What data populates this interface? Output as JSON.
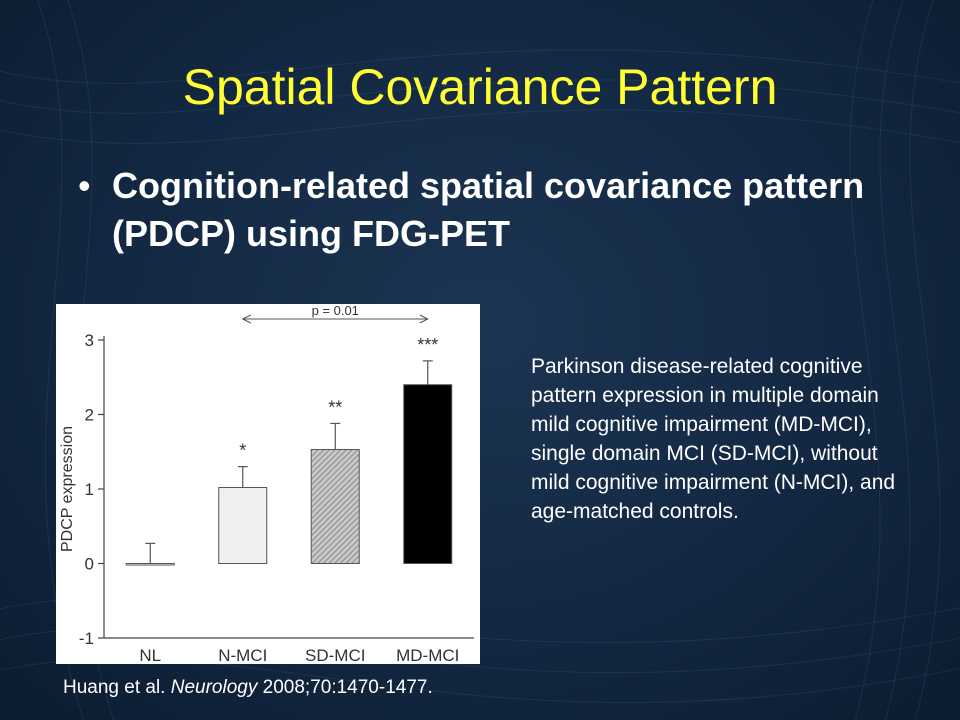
{
  "slide": {
    "title": "Spatial Covariance Pattern",
    "bullet": "Cognition-related spatial covariance pattern (PDCP) using FDG-PET",
    "caption": "Parkinson disease-related cognitive pattern expression in multiple domain mild cognitive impairment (MD-MCI), single domain MCI (SD-MCI), without mild cognitive impairment (N-MCI), and age-matched controls.",
    "citation": {
      "authors": "Huang et al. ",
      "journal": "Neurology",
      "details": " 2008;70:1470-1477."
    }
  },
  "chart_data": {
    "type": "bar",
    "title": "",
    "xlabel": "",
    "ylabel": "PDCP expression",
    "ylim": [
      -1,
      3
    ],
    "yticks": [
      "-1",
      "0",
      "1",
      "2",
      "3"
    ],
    "categories": [
      "NL",
      "N-MCI",
      "SD-MCI",
      "MD-MCI"
    ],
    "values": [
      0.0,
      1.02,
      1.53,
      2.4
    ],
    "errors": [
      0.27,
      0.28,
      0.35,
      0.32
    ],
    "significance": [
      "",
      "*",
      "**",
      "***"
    ],
    "bar_fills": [
      "#ffffff",
      "#f0f0f0",
      "#b0b0b0",
      "#000000"
    ],
    "annotation": "p = 0.01",
    "grid": false,
    "legend": "none"
  }
}
